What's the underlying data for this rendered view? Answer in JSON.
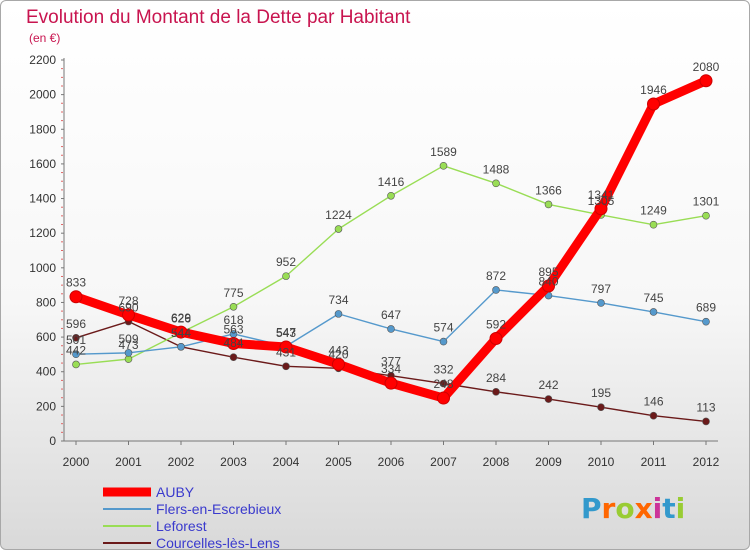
{
  "chart_data": {
    "type": "line",
    "title": "Evolution du Montant de la Dette par Habitant",
    "subtitle": "(en €)",
    "x": [
      "2000",
      "2001",
      "2002",
      "2003",
      "2004",
      "2005",
      "2006",
      "2007",
      "2008",
      "2009",
      "2010",
      "2011",
      "2012"
    ],
    "ylim": [
      0,
      2200
    ],
    "yticks": [
      0,
      200,
      400,
      600,
      800,
      1000,
      1200,
      1400,
      1600,
      1800,
      2000,
      2200
    ],
    "grid": false,
    "legend_position": "bottom-left",
    "series": [
      {
        "name": "Courcelles-lès-Lens",
        "color": "#6b1a1a",
        "values": [
          596,
          690,
          544,
          484,
          431,
          420,
          377,
          332,
          284,
          242,
          195,
          146,
          113
        ]
      },
      {
        "name": "Leforest",
        "color": "#99dd55",
        "values": [
          442,
          473,
          626,
          775,
          952,
          1224,
          1416,
          1589,
          1488,
          1366,
          1305,
          1249,
          1301
        ]
      },
      {
        "name": "Flers-en-Escrebieux",
        "color": "#5599cc",
        "values": [
          501,
          509,
          544,
          618,
          547,
          734,
          647,
          574,
          872,
          840,
          797,
          745,
          689
        ]
      },
      {
        "name": "AUBY",
        "color": "#ff0000",
        "values": [
          833,
          728,
          629,
          563,
          543,
          443,
          334,
          248,
          592,
          895,
          1341,
          1946,
          2080
        ]
      }
    ]
  },
  "logo": {
    "text": "Proxiti",
    "letters": [
      "P",
      "r",
      "o",
      "x",
      "i",
      "t",
      "i"
    ],
    "colors": [
      "#3399cc",
      "#ff6600",
      "#99cc33",
      "#ff6600",
      "#cc3399",
      "#3399cc",
      "#99cc33"
    ]
  }
}
